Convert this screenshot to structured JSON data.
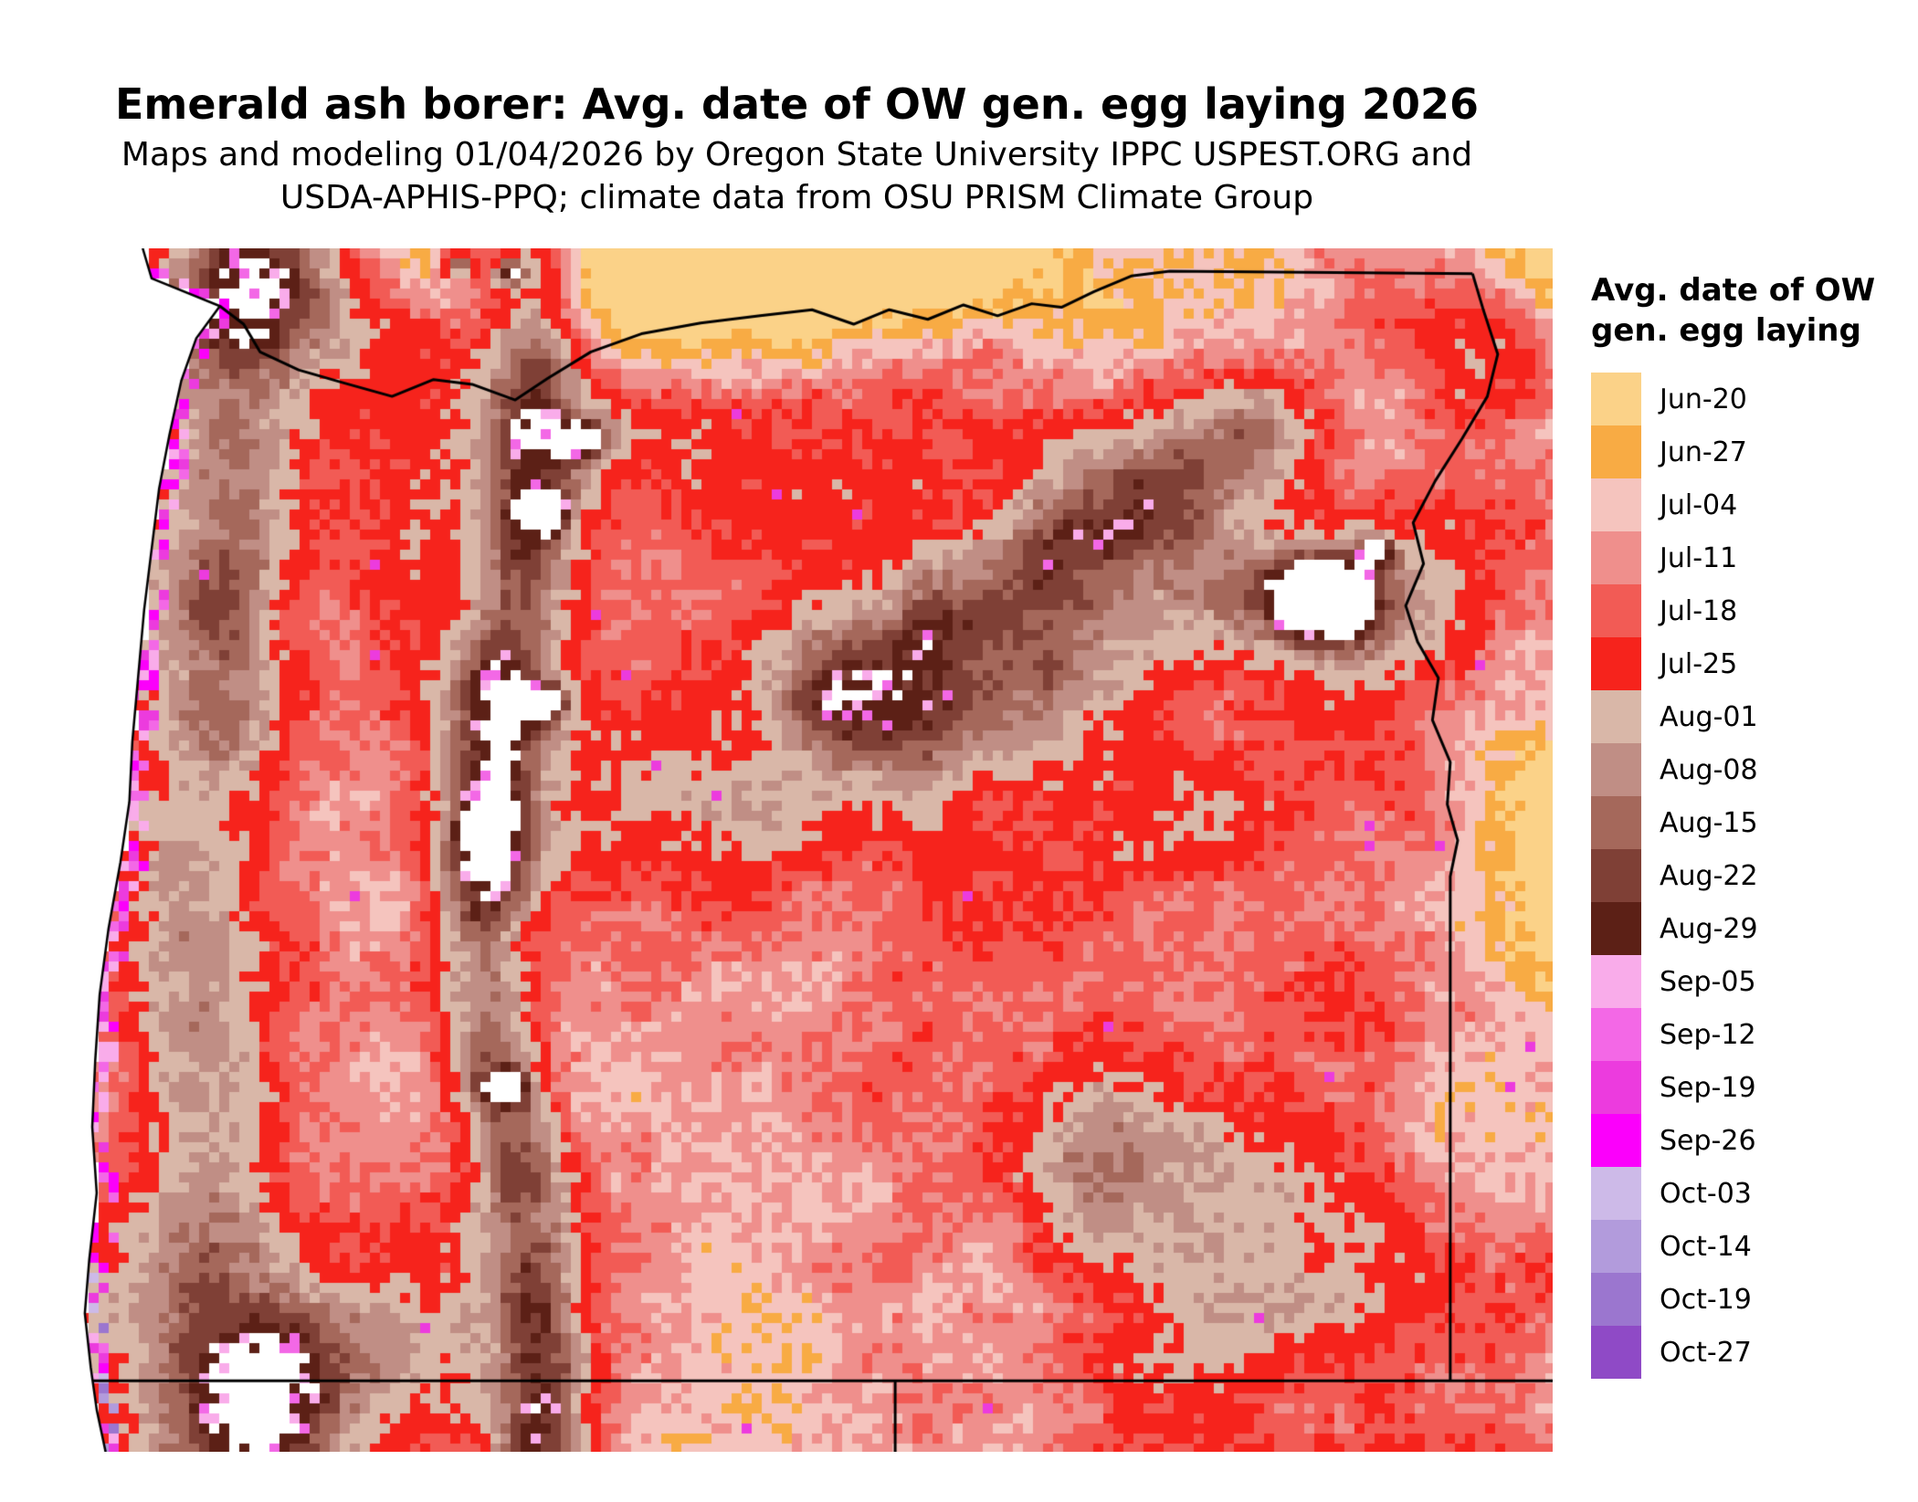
{
  "header": {
    "title": "Emerald ash borer: Avg. date of OW gen. egg laying 2026",
    "subtitle_line1": "Maps and modeling 01/04/2026 by Oregon State University IPPC USPEST.ORG and",
    "subtitle_line2": "USDA-APHIS-PPQ; climate data from OSU PRISM Climate Group"
  },
  "legend": {
    "title_line1": "Avg. date of OW",
    "title_line2": "gen. egg laying",
    "entries": [
      {
        "label": "Jun-20",
        "color": "#FBD288"
      },
      {
        "label": "Jun-27",
        "color": "#F8AB44"
      },
      {
        "label": "Jul-04",
        "color": "#F5C4BE"
      },
      {
        "label": "Jul-11",
        "color": "#EF8F8C"
      },
      {
        "label": "Jul-18",
        "color": "#F25B55"
      },
      {
        "label": "Jul-25",
        "color": "#F6231C"
      },
      {
        "label": "Aug-01",
        "color": "#D9B7A8"
      },
      {
        "label": "Aug-08",
        "color": "#C08E85"
      },
      {
        "label": "Aug-15",
        "color": "#A5685B"
      },
      {
        "label": "Aug-22",
        "color": "#7F4036"
      },
      {
        "label": "Aug-29",
        "color": "#5C2016"
      },
      {
        "label": "Sep-05",
        "color": "#F9ACEA"
      },
      {
        "label": "Sep-12",
        "color": "#F368E6"
      },
      {
        "label": "Sep-19",
        "color": "#EC3BDE"
      },
      {
        "label": "Sep-26",
        "color": "#FB00FB"
      },
      {
        "label": "Oct-03",
        "color": "#CDBAE8"
      },
      {
        "label": "Oct-14",
        "color": "#B29BDC"
      },
      {
        "label": "Oct-19",
        "color": "#9B76CF"
      },
      {
        "label": "Oct-27",
        "color": "#8F4AC6"
      }
    ]
  },
  "map": {
    "region": "Oregon and surrounding states",
    "ocean_color": "#FFFFFF",
    "no_data_color": "#FFFFFF",
    "border_color": "#000000"
  }
}
